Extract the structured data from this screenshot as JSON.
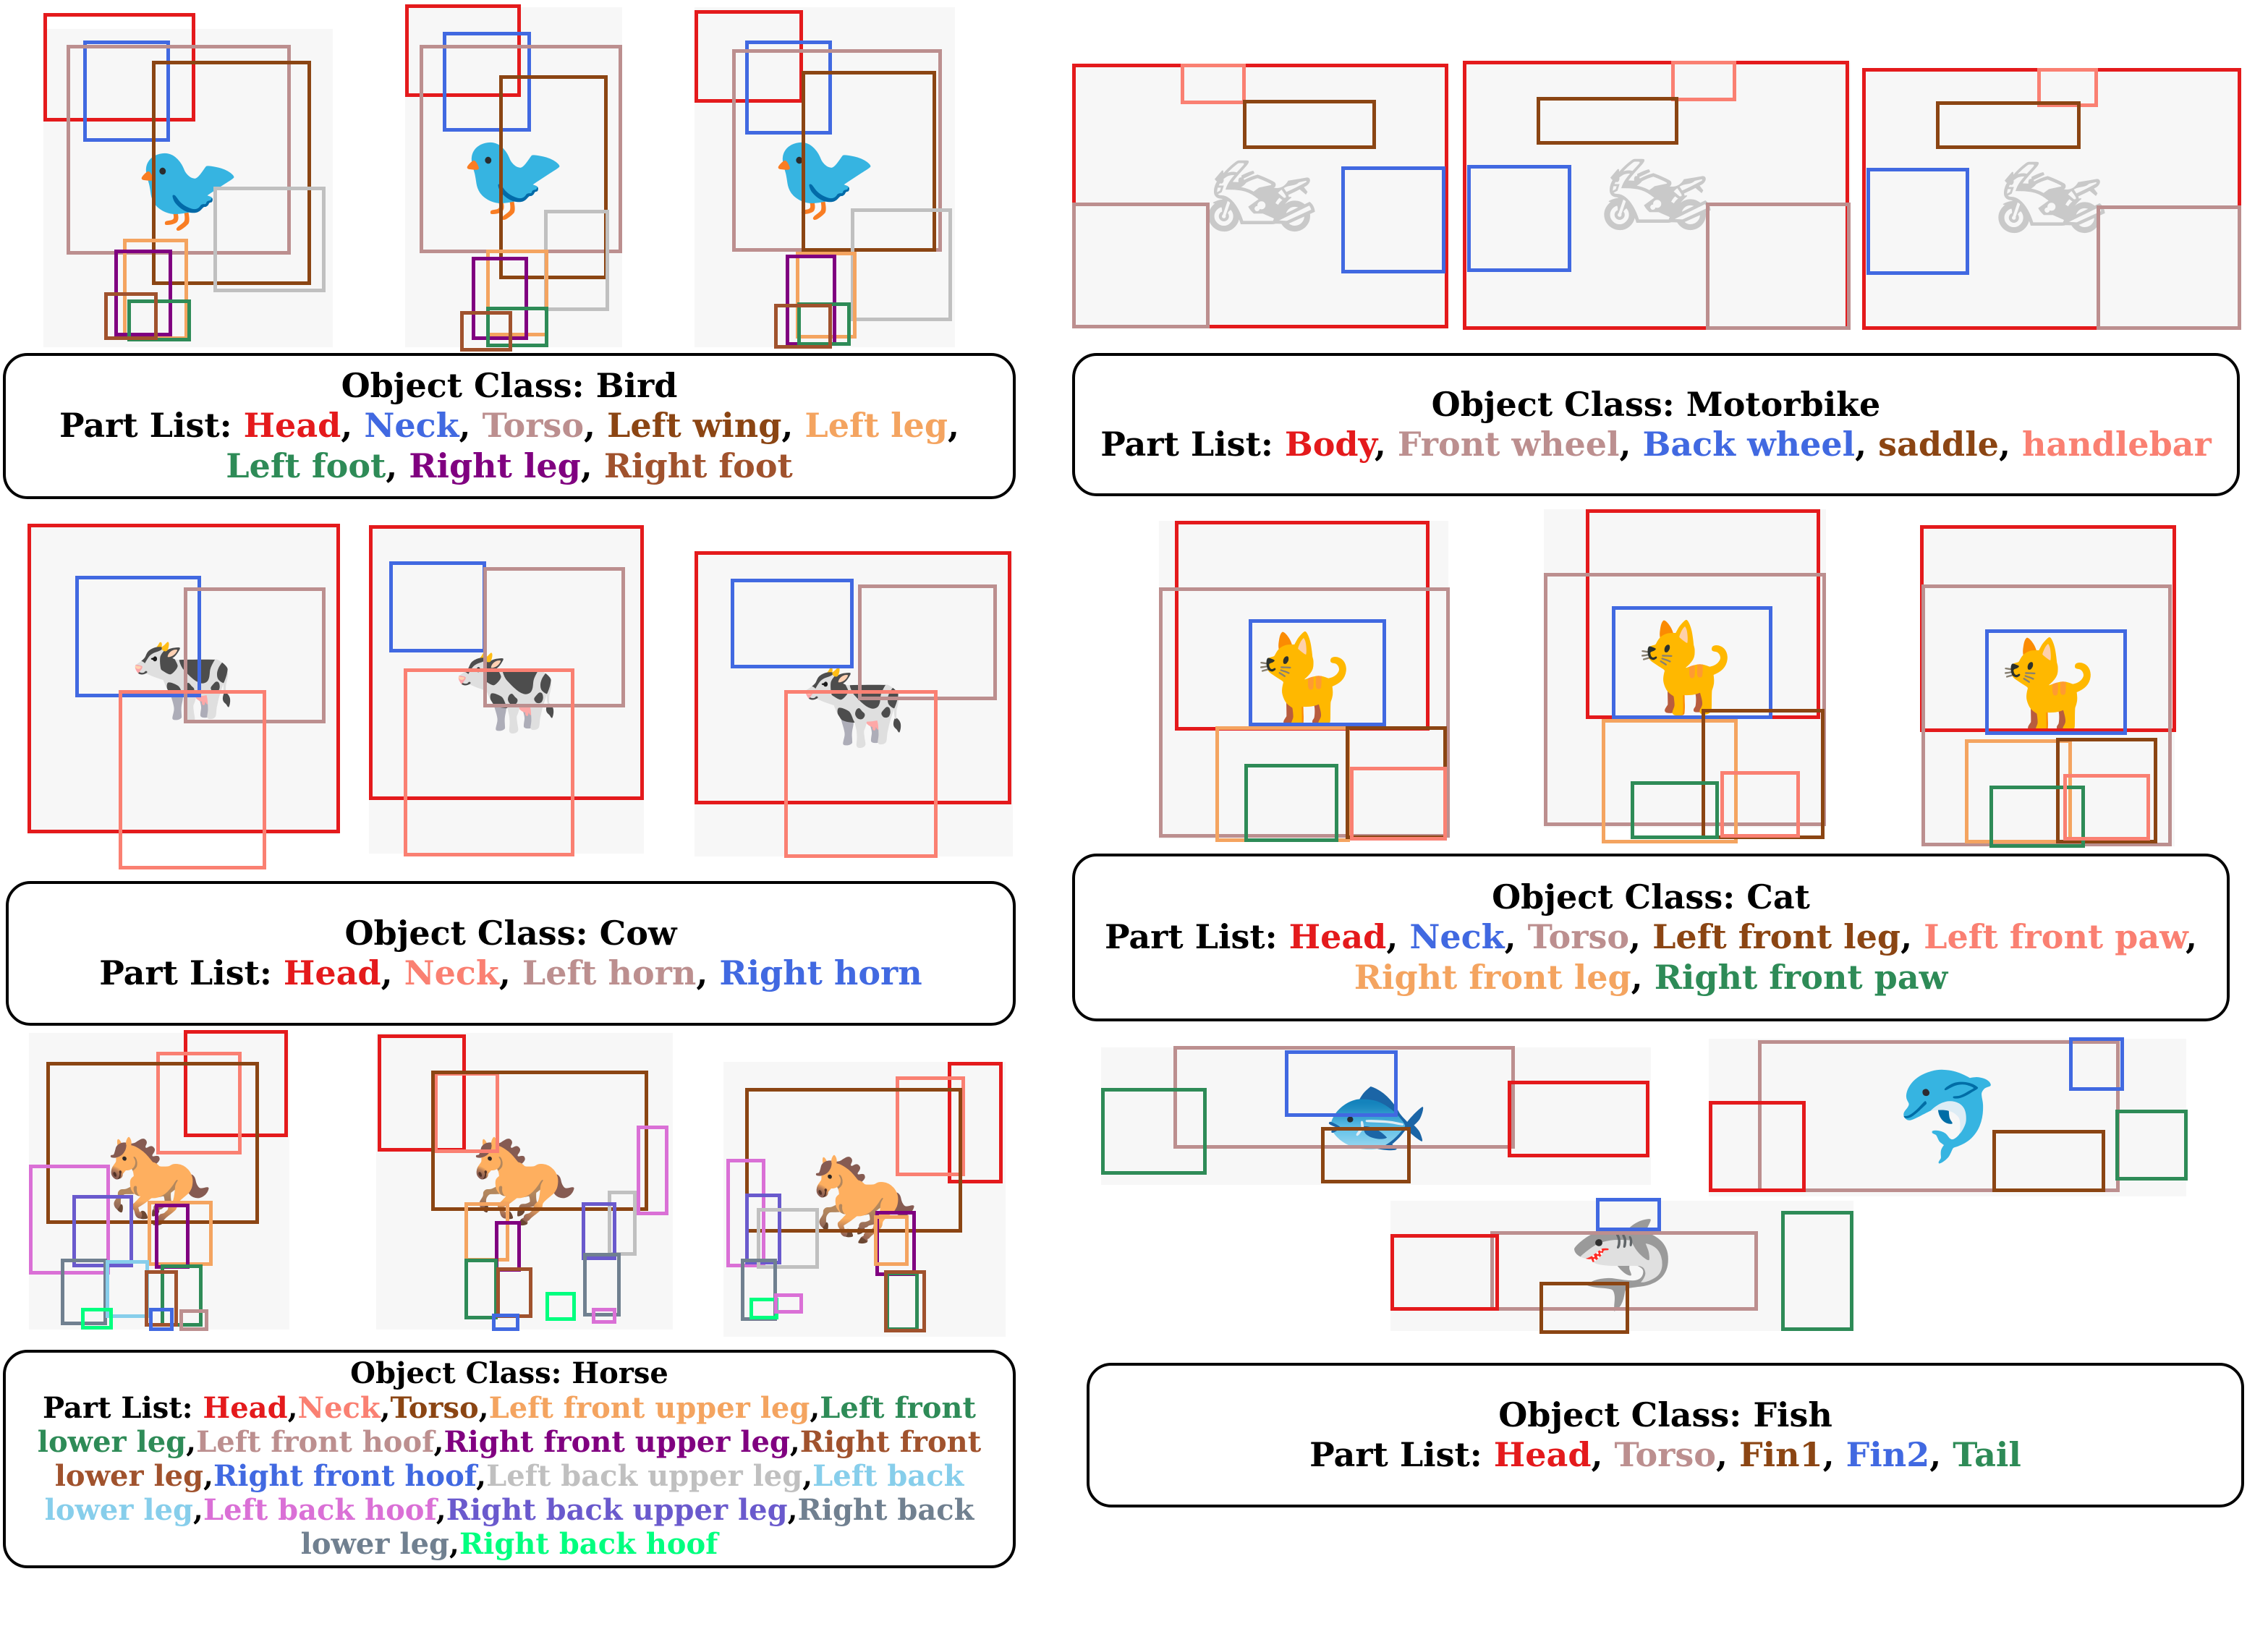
{
  "panels": [
    {
      "id": "bird",
      "class_prefix": "Object Class: ",
      "class_name": "Bird",
      "parts_prefix": "Part List: ",
      "parts": [
        {
          "label": "Head",
          "color": "#e41a1c"
        },
        {
          "label": "Neck",
          "color": "#4169e1"
        },
        {
          "label": "Torso",
          "color": "#bc8f8f"
        },
        {
          "label": "Left wing",
          "color": "#8b4513"
        },
        {
          "label": "Left leg",
          "color": "#f4a460"
        },
        {
          "label": "Left foot",
          "color": "#2e8b57"
        },
        {
          "label": "Right leg",
          "color": "#800080"
        },
        {
          "label": "Right foot",
          "color": "#a0522d"
        }
      ]
    },
    {
      "id": "motorbike",
      "class_prefix": "Object Class: ",
      "class_name": "Motorbike",
      "parts_prefix": "Part List: ",
      "parts": [
        {
          "label": "Body",
          "color": "#e41a1c"
        },
        {
          "label": "Front wheel",
          "color": "#bc8f8f"
        },
        {
          "label": "Back wheel",
          "color": "#4169e1"
        },
        {
          "label": "saddle",
          "color": "#8b4513"
        },
        {
          "label": "handlebar",
          "color": "#fa8072"
        }
      ]
    },
    {
      "id": "cow",
      "class_prefix": "Object Class: ",
      "class_name": "Cow",
      "parts_prefix": "Part List: ",
      "parts": [
        {
          "label": "Head",
          "color": "#e41a1c"
        },
        {
          "label": "Neck",
          "color": "#fa8072"
        },
        {
          "label": "Left horn",
          "color": "#bc8f8f"
        },
        {
          "label": "Right horn",
          "color": "#4169e1"
        }
      ]
    },
    {
      "id": "cat",
      "class_prefix": "Object Class: ",
      "class_name": "Cat",
      "parts_prefix": "Part List: ",
      "parts": [
        {
          "label": "Head",
          "color": "#e41a1c"
        },
        {
          "label": "Neck",
          "color": "#4169e1"
        },
        {
          "label": "Torso",
          "color": "#bc8f8f"
        },
        {
          "label": "Left front leg",
          "color": "#8b4513"
        },
        {
          "label": "Left front paw",
          "color": "#fa8072"
        },
        {
          "label": "Right front leg",
          "color": "#f4a460"
        },
        {
          "label": "Right front paw",
          "color": "#2e8b57"
        }
      ]
    },
    {
      "id": "horse",
      "class_prefix": "Object Class: ",
      "class_name": "Horse",
      "parts_prefix": "Part List: ",
      "parts": [
        {
          "label": "Head",
          "color": "#e41a1c"
        },
        {
          "label": "Neck",
          "color": "#fa8072"
        },
        {
          "label": "Torso",
          "color": "#8b4513"
        },
        {
          "label": "Left front upper leg",
          "color": "#f4a460"
        },
        {
          "label": "Left front lower leg",
          "color": "#2e8b57"
        },
        {
          "label": "Left front hoof",
          "color": "#bc8f8f"
        },
        {
          "label": "Right front upper leg",
          "color": "#800080"
        },
        {
          "label": "Right front lower leg",
          "color": "#a0522d"
        },
        {
          "label": "Right front hoof",
          "color": "#4169e1"
        },
        {
          "label": "Left back upper leg",
          "color": "#c0c0c0"
        },
        {
          "label": "Left back lower leg",
          "color": "#87ceeb"
        },
        {
          "label": "Left back hoof",
          "color": "#da70d6"
        },
        {
          "label": "Right back upper leg",
          "color": "#6a5acd"
        },
        {
          "label": "Right back lower leg",
          "color": "#708090"
        },
        {
          "label": "Right back hoof",
          "color": "#00ff7f"
        }
      ]
    },
    {
      "id": "fish",
      "class_prefix": "Object Class: ",
      "class_name": "Fish",
      "parts_prefix": "Part List: ",
      "parts": [
        {
          "label": "Head",
          "color": "#e41a1c"
        },
        {
          "label": "Torso",
          "color": "#bc8f8f"
        },
        {
          "label": "Fin1",
          "color": "#8b4513"
        },
        {
          "label": "Fin2",
          "color": "#4169e1"
        },
        {
          "label": "Tail",
          "color": "#2e8b57"
        }
      ]
    }
  ]
}
